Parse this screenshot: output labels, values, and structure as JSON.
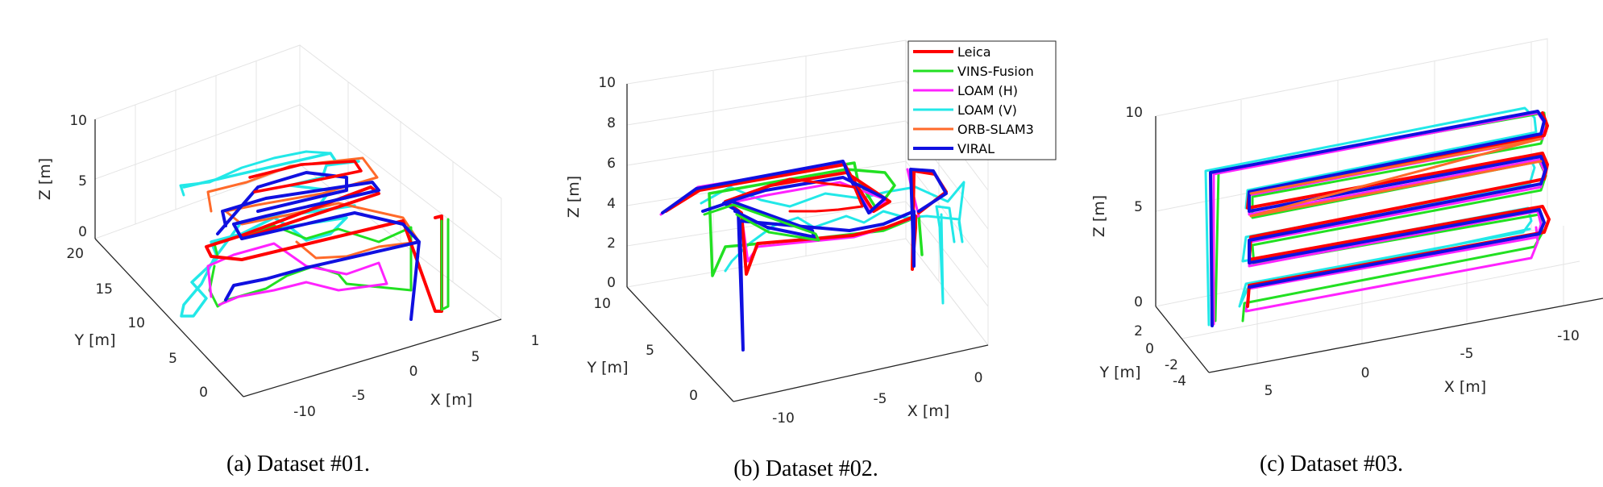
{
  "palette": {
    "Leica": "#ff0000",
    "VINS-Fusion": "#22e022",
    "LOAM (H)": "#ff22ff",
    "LOAM (V)": "#22e8e8",
    "ORB-SLAM3": "#ff6a2a",
    "VIRAL": "#1010e0"
  },
  "legend": [
    "Leica",
    "VINS-Fusion",
    "LOAM (H)",
    "LOAM (V)",
    "ORB-SLAM3",
    "VIRAL"
  ],
  "captions": [
    "(a) Dataset #01.",
    "(b) Dataset #02.",
    "(c) Dataset #03."
  ],
  "chart_data": [
    {
      "type": "line",
      "xlabel": "X [m]",
      "ylabel": "Y [m]",
      "zlabel": "Z [m]",
      "x_ticks": [
        "-10",
        "-5",
        "0",
        "5",
        "1"
      ],
      "y_ticks": [
        "0",
        "5",
        "10",
        "15",
        "20"
      ],
      "z_ticks": [
        "0",
        "5",
        "10"
      ],
      "grid": true
    },
    {
      "type": "line",
      "xlabel": "X [m]",
      "ylabel": "Y [m]",
      "zlabel": "Z [m]",
      "x_ticks": [
        "-10",
        "-5",
        "0"
      ],
      "y_ticks": [
        "0",
        "5",
        "10"
      ],
      "z_ticks": [
        "0",
        "2",
        "4",
        "6",
        "8",
        "10"
      ],
      "grid": true,
      "legend_position": "top-right"
    },
    {
      "type": "line",
      "xlabel": "X [m]",
      "ylabel": "Y [m]",
      "zlabel": "Z [m]",
      "x_ticks": [
        "5",
        "0",
        "-5",
        "-10"
      ],
      "y_ticks": [
        "-4",
        "-2",
        "0",
        "2"
      ],
      "z_ticks": [
        "0",
        "5",
        "10"
      ],
      "grid": true
    }
  ]
}
